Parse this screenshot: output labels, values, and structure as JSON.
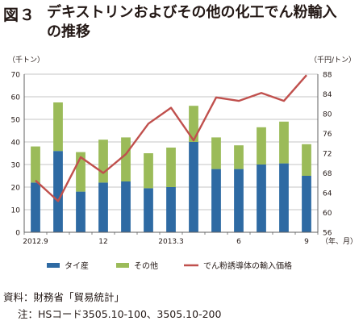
{
  "header": {
    "figure_label": "図３",
    "title": "デキストリンおよびその他の化工でん粉輸入の推移"
  },
  "footer": {
    "source": "資料：財務省「貿易統計」",
    "note": "注：HSコード3505.10-100、3505.10-200"
  },
  "colors": {
    "thailand": "#2e6aa3",
    "other": "#9bbb59",
    "price": "#c0504d",
    "grid": "#b0b0b0",
    "axis": "#606060"
  },
  "chart_data": {
    "type": "bar",
    "stacked": true,
    "title": "",
    "ylabel": "（千トン）",
    "y2label": "（千円/トン）",
    "xlabel": "（年、月）",
    "ylim": [
      0,
      70
    ],
    "yticks": [
      0,
      10,
      20,
      30,
      40,
      50,
      60,
      70
    ],
    "y2lim": [
      56,
      88
    ],
    "y2ticks": [
      56,
      60,
      64,
      68,
      72,
      76,
      80,
      84,
      88
    ],
    "grid": true,
    "legend_position": "bottom",
    "x_tick_labels": [
      {
        "index": 0,
        "label": "2012.9"
      },
      {
        "index": 3,
        "label": "12"
      },
      {
        "index": 6,
        "label": "2013.3"
      },
      {
        "index": 9,
        "label": "6"
      },
      {
        "index": 12,
        "label": "9"
      }
    ],
    "categories": [
      "2012.9",
      "2012.10",
      "2012.11",
      "2012.12",
      "2013.1",
      "2013.2",
      "2013.3",
      "2013.4",
      "2013.5",
      "2013.6",
      "2013.7",
      "2013.8",
      "2013.9"
    ],
    "series": [
      {
        "name": "タイ産",
        "kind": "bar",
        "axis": "left",
        "values": [
          22.0,
          36.0,
          18.0,
          22.0,
          22.5,
          19.5,
          20.0,
          40.0,
          28.0,
          28.0,
          30.0,
          30.5,
          25.0
        ]
      },
      {
        "name": "その他",
        "kind": "bar",
        "axis": "left",
        "values": [
          16.0,
          21.5,
          17.5,
          19.0,
          19.5,
          15.5,
          17.5,
          16.0,
          14.0,
          10.5,
          16.5,
          18.5,
          14.0
        ]
      },
      {
        "name": "でん粉誘導体の輸入価格",
        "kind": "line",
        "axis": "right",
        "values": [
          66.5,
          62.3,
          71.2,
          68.0,
          71.8,
          78.0,
          81.2,
          74.6,
          83.3,
          82.6,
          84.2,
          82.6,
          87.8
        ]
      }
    ]
  }
}
